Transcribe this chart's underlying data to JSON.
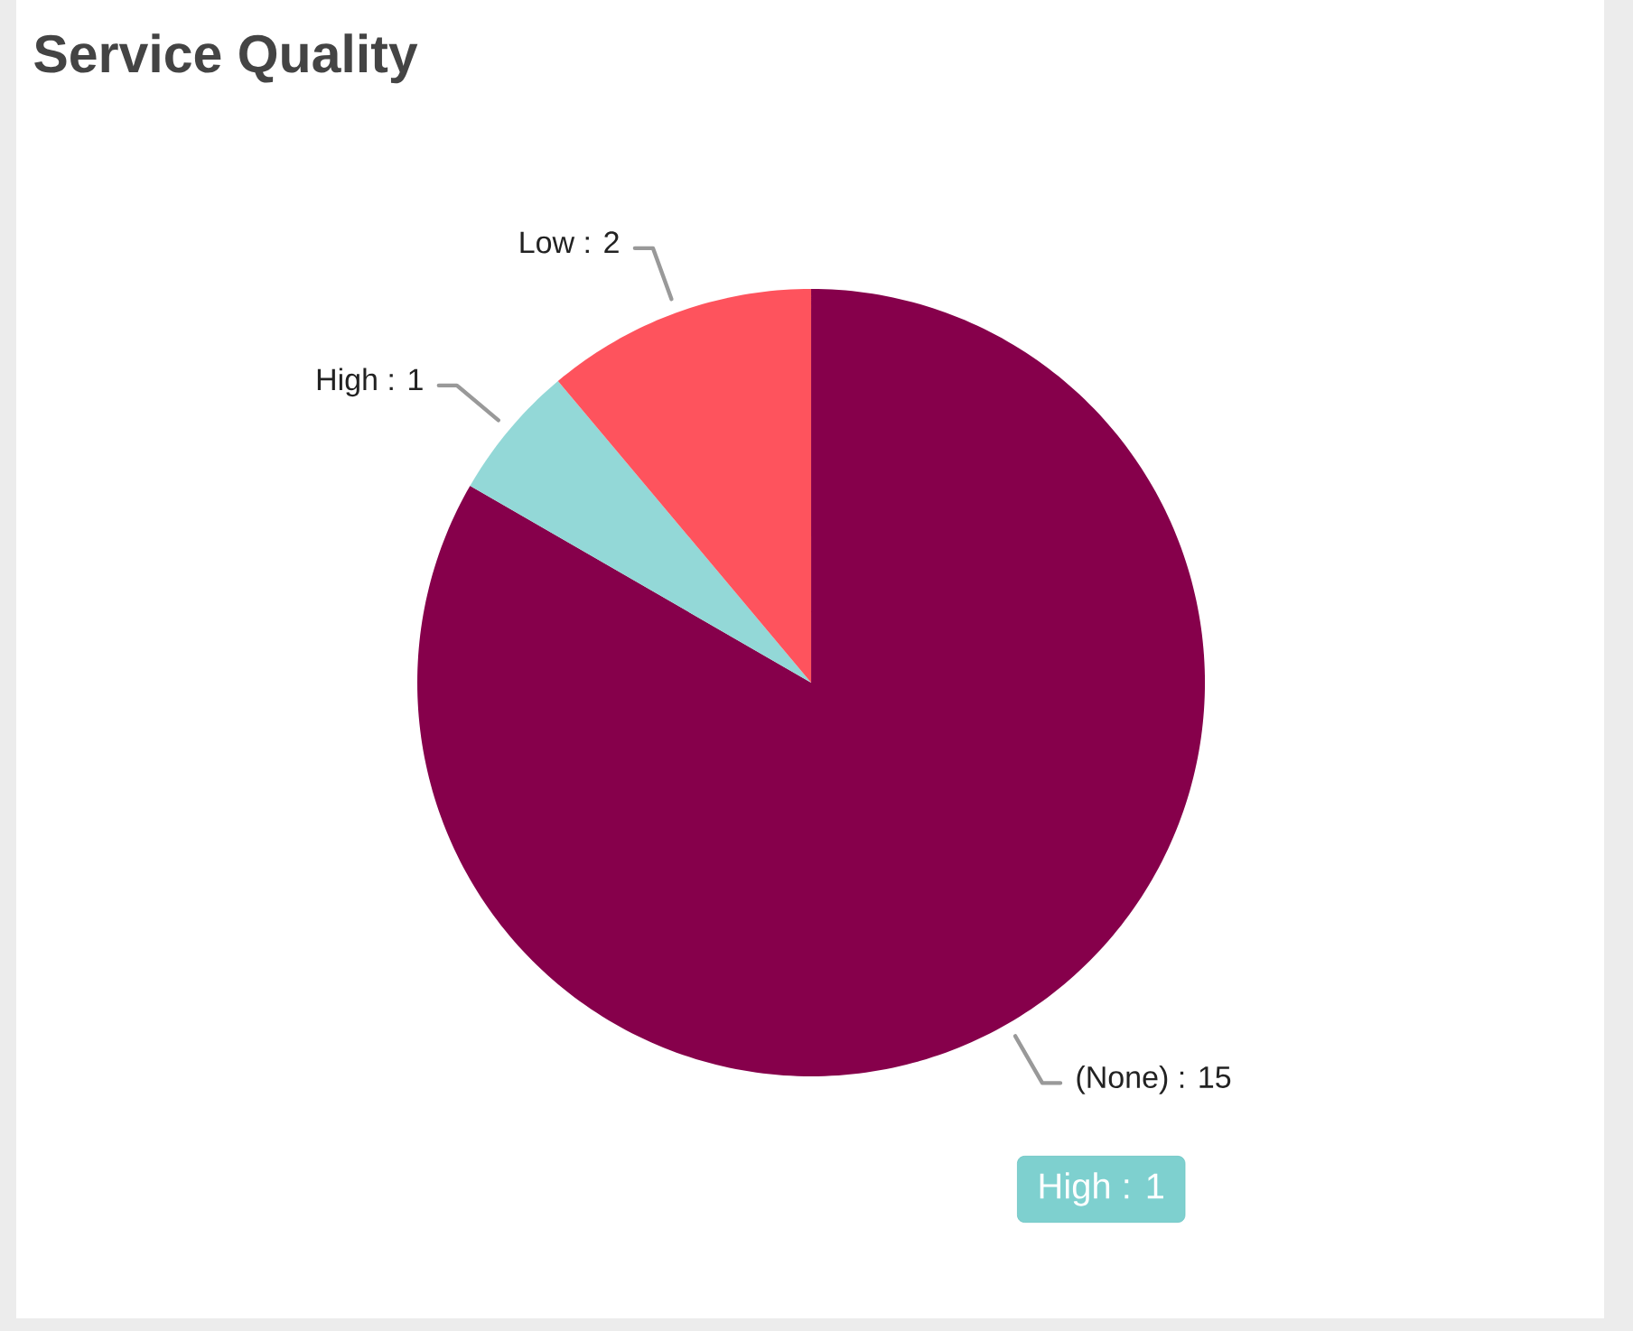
{
  "chart_data": {
    "type": "pie",
    "title": "Service Quality",
    "categories": [
      "(None)",
      "High",
      "Low"
    ],
    "values": [
      15,
      1,
      2
    ],
    "value_labels": [
      ": 15",
      ": 1",
      ": 2"
    ],
    "colors": [
      "#86004b",
      "#93d8d7",
      "#fe535d"
    ],
    "annotations": [
      "High : 1"
    ]
  }
}
